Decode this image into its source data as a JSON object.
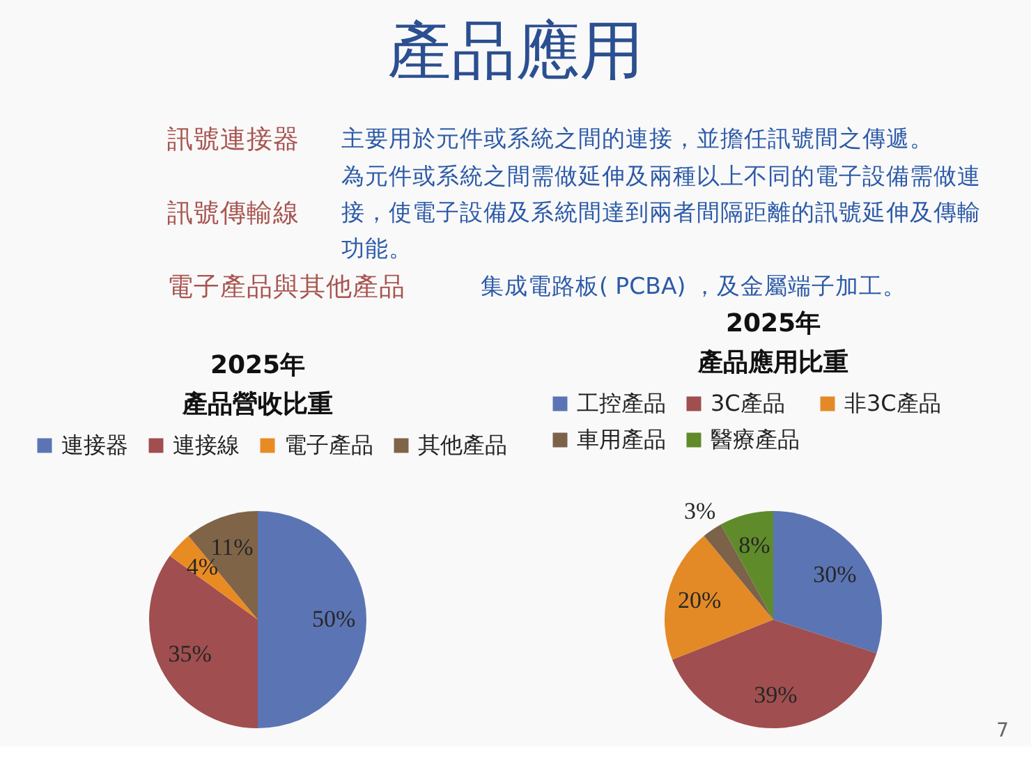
{
  "chart_data": [
    {
      "type": "other",
      "title": "產品應用",
      "annotations": [
        "訊號連接器",
        "主要用於元件或系統之間的連接，並擔任訊號間之傳遞。",
        "訊號傳輸線",
        "為元件或系統之間需做延伸及兩種以上不同的電子設備需做連接，使電子設備及系統間達到兩者間隔距離的訊號延伸及傳輸功能。",
        "電子產品與其他產品",
        "集成電路板( PCBA) ，及金屬端子加工。"
      ]
    },
    {
      "type": "pie",
      "title": "2025年",
      "subtitle": "產品營收比重",
      "categories": [
        "連接器",
        "連接線",
        "電子產品",
        "其他產品"
      ],
      "values": [
        50,
        35,
        4,
        11
      ],
      "colors": [
        "#5b74b4",
        "#a04e4f",
        "#e98b23",
        "#7f6447"
      ],
      "value_labels": [
        "50%",
        "35%",
        "4%",
        "11%"
      ],
      "legend": "top"
    },
    {
      "type": "pie",
      "title": "2025年",
      "subtitle": "產品應用比重",
      "categories": [
        "工控產品",
        "3C產品",
        "非3C產品",
        "車用產品",
        "醫療產品"
      ],
      "values": [
        30,
        39,
        20,
        3,
        8
      ],
      "colors": [
        "#5b74b4",
        "#a04e4f",
        "#e38a26",
        "#7c6248",
        "#5f8b2b"
      ],
      "value_labels": [
        "30%",
        "39%",
        "20%",
        "3%",
        "8%"
      ],
      "legend": "top",
      "annotations": [
        "7"
      ]
    }
  ]
}
